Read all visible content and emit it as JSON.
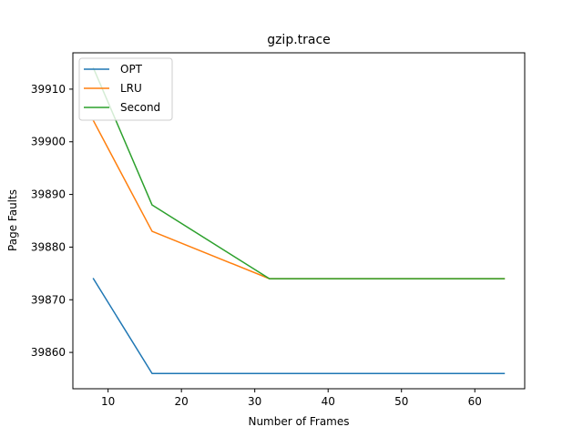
{
  "chart_data": {
    "type": "line",
    "title": "gzip.trace",
    "xlabel": "Number of Frames",
    "ylabel": "Page Faults",
    "x": [
      8,
      16,
      32,
      64
    ],
    "xlim": [
      5.2,
      66.8
    ],
    "ylim": [
      39853.1,
      39916.9
    ],
    "xticks": [
      10,
      20,
      30,
      40,
      50,
      60
    ],
    "yticks": [
      39860,
      39870,
      39880,
      39890,
      39900,
      39910
    ],
    "grid": false,
    "legend_position": "top-left",
    "series": [
      {
        "name": "OPT",
        "color": "#1f77b4",
        "values": [
          39874,
          39856,
          39856,
          39856
        ]
      },
      {
        "name": "LRU",
        "color": "#ff7f0e",
        "values": [
          39904,
          39883,
          39874,
          39874
        ]
      },
      {
        "name": "Second",
        "color": "#2ca02c",
        "values": [
          39914,
          39888,
          39874,
          39874
        ]
      }
    ]
  }
}
